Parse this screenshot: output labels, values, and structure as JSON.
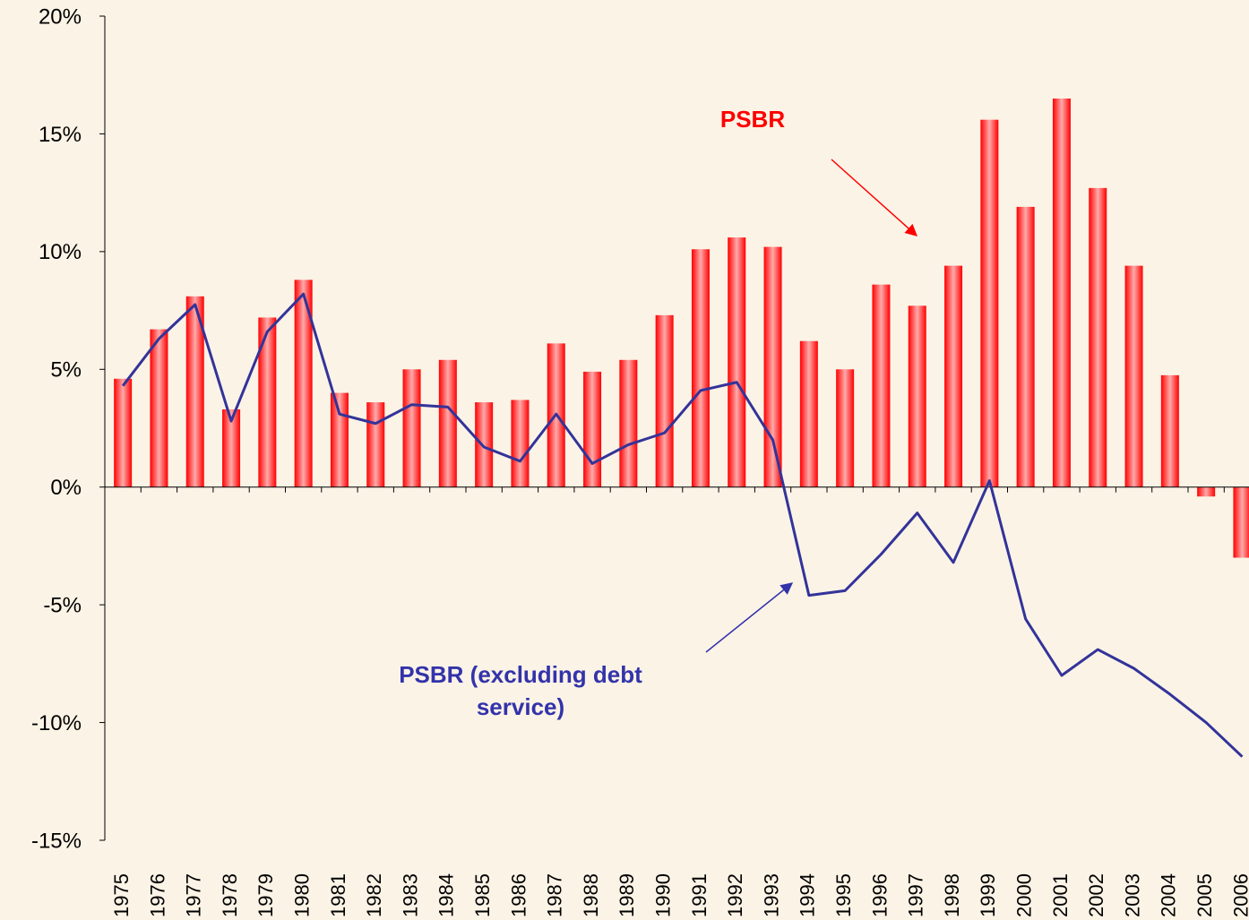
{
  "chart_data": {
    "type": "bar_line",
    "categories": [
      "1975",
      "1976",
      "1977",
      "1978",
      "1979",
      "1980",
      "1981",
      "1982",
      "1983",
      "1984",
      "1985",
      "1986",
      "1987",
      "1988",
      "1989",
      "1990",
      "1991",
      "1992",
      "1993",
      "1994",
      "1995",
      "1996",
      "1997",
      "1998",
      "1999",
      "2000",
      "2001",
      "2002",
      "2003",
      "2004",
      "2005",
      "2006"
    ],
    "series": [
      {
        "name": "PSBR",
        "type": "bar",
        "color": "#ff0000",
        "values": [
          4.6,
          6.7,
          8.1,
          3.3,
          7.2,
          8.8,
          4.0,
          3.6,
          5.0,
          5.4,
          3.6,
          3.7,
          6.1,
          4.9,
          5.4,
          7.3,
          10.1,
          10.6,
          10.2,
          6.2,
          5.0,
          8.6,
          7.7,
          9.4,
          15.6,
          11.9,
          16.5,
          12.7,
          9.4,
          4.75,
          -0.4,
          -3.0
        ]
      },
      {
        "name": "PSBR (excluding debt service)",
        "type": "line",
        "color": "#333399",
        "values": [
          4.3,
          6.3,
          7.75,
          2.8,
          6.6,
          8.2,
          3.1,
          2.7,
          3.5,
          3.4,
          1.7,
          1.1,
          3.1,
          1.0,
          1.8,
          2.3,
          4.1,
          4.45,
          2.0,
          -4.6,
          -4.4,
          -2.85,
          -1.1,
          -3.2,
          0.27,
          -5.6,
          -8.0,
          -6.9,
          -7.7,
          -8.8,
          -10.0,
          -11.45
        ]
      }
    ],
    "annotations": [
      {
        "lines": [
          "PSBR"
        ],
        "color": "#ff0000"
      },
      {
        "lines": [
          "PSBR (excluding debt",
          "service)"
        ],
        "color": "#3333aa"
      }
    ],
    "ylim": [
      -15,
      20
    ],
    "yticks": [
      {
        "value": -15,
        "label": "-15%"
      },
      {
        "value": -10,
        "label": "-10%"
      },
      {
        "value": -5,
        "label": "-5%"
      },
      {
        "value": 0,
        "label": "0%"
      },
      {
        "value": 5,
        "label": "5%"
      },
      {
        "value": 10,
        "label": "10%"
      },
      {
        "value": 15,
        "label": "15%"
      },
      {
        "value": 20,
        "label": "20%"
      }
    ],
    "grid": false
  }
}
